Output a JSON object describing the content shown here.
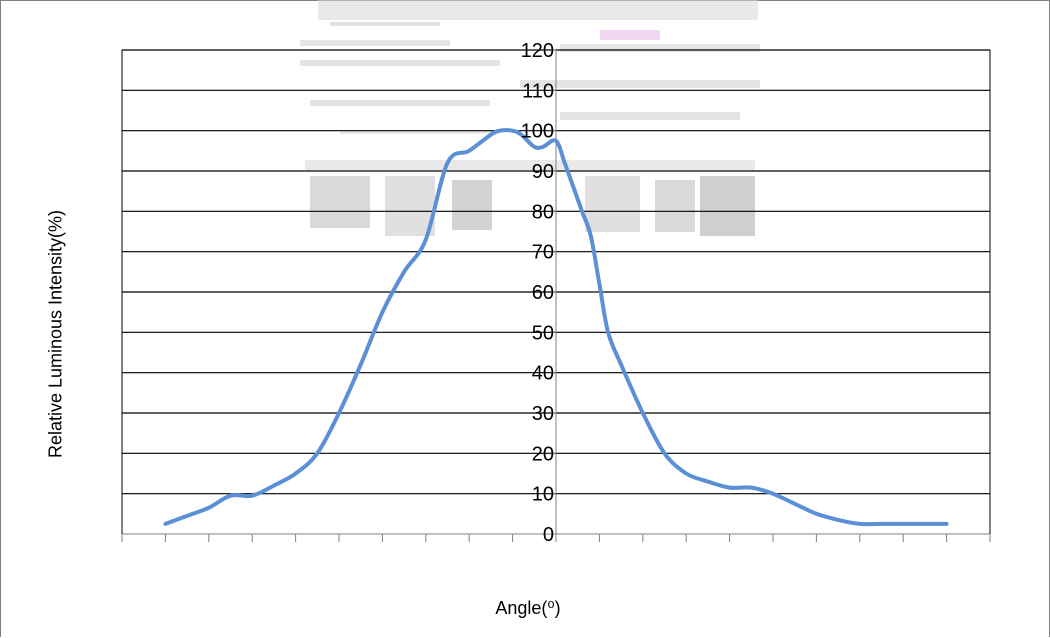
{
  "chart_data": {
    "type": "line",
    "title": "",
    "xlabel": "Angle(⁰)",
    "ylabel": "Relative Luminous Intensity(%)",
    "x_range": [
      -100,
      100
    ],
    "x_tick_step": 10,
    "x_tick_labels_visible": false,
    "ylim": [
      0,
      120
    ],
    "yticks": [
      0,
      10,
      20,
      30,
      40,
      50,
      60,
      70,
      80,
      90,
      100,
      110,
      120
    ],
    "grid": "horizontal",
    "legend": "none",
    "series": [
      {
        "color": "#5b8fd6",
        "x": [
          -90,
          -85,
          -80,
          -75,
          -70,
          -65,
          -60,
          -55,
          -50,
          -45,
          -40,
          -35,
          -30,
          -25,
          -20,
          -15,
          -13,
          -10,
          -8,
          -5,
          -3,
          0,
          2,
          4,
          6,
          8,
          10,
          12,
          15,
          20,
          25,
          30,
          35,
          40,
          45,
          50,
          55,
          60,
          65,
          70,
          75,
          80,
          85,
          90
        ],
        "y": [
          2.5,
          4.5,
          6.5,
          9.5,
          9.5,
          12,
          15,
          20,
          30,
          42,
          55,
          65,
          73,
          92,
          95,
          99,
          100,
          100,
          99,
          96,
          96,
          97.5,
          92,
          86,
          80,
          74,
          62,
          50,
          42,
          30,
          20,
          15,
          13,
          11.5,
          11.5,
          10,
          7.5,
          5,
          3.5,
          2.5,
          2.5,
          2.5,
          2.5,
          2.5
        ]
      }
    ]
  }
}
